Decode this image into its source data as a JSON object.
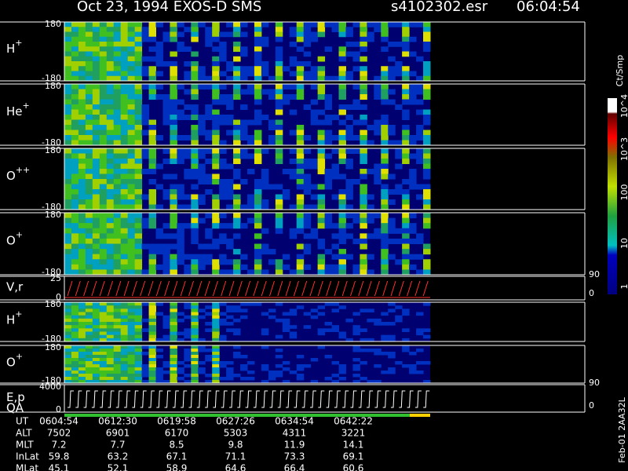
{
  "header": {
    "title": "Oct 23, 1994   EXOS-D SMS",
    "file": "s4102302.esr",
    "time": "06:04:54"
  },
  "panels": [
    {
      "label": "H",
      "sup": "+",
      "top": "180",
      "bottom": "-180"
    },
    {
      "label": "He",
      "sup": "+",
      "top": "180",
      "bottom": "-180"
    },
    {
      "label": "O",
      "sup": "++",
      "top": "180",
      "bottom": "-180"
    },
    {
      "label": "O",
      "sup": "+",
      "top": "180",
      "bottom": "-180"
    },
    {
      "label": "V,r",
      "top": "25",
      "bottom": "0",
      "right_top": "90",
      "right_bottom": "0"
    },
    {
      "label": "H",
      "sup": "+",
      "top": "180",
      "bottom": "-180"
    },
    {
      "label": "O",
      "sup": "+",
      "top": "180",
      "bottom": "-180"
    },
    {
      "label": "E,p",
      "label2": "QA",
      "top": "4000",
      "bottom": "0",
      "right_top": "90",
      "right_bottom": "0"
    }
  ],
  "colorbar": {
    "title": "Ct/Smp",
    "ticks": [
      "1",
      "10",
      "100",
      "10^3",
      "10^4"
    ]
  },
  "table": {
    "rows": [
      [
        "UT",
        "0604:54",
        "0612:30",
        "0619:58",
        "0627:26",
        "0634:54",
        "0642:22"
      ],
      [
        "ALT",
        "7502",
        "6901",
        "6170",
        "5303",
        "4311",
        "3221"
      ],
      [
        "MLT",
        "7.2",
        "7.7",
        "8.5",
        "9.8",
        "11.9",
        "14.1"
      ],
      [
        "InLat",
        "59.8",
        "63.2",
        "67.1",
        "71.1",
        "73.3",
        "69.1"
      ],
      [
        "MLat",
        "45.1",
        "52.1",
        "58.9",
        "64.6",
        "66.4",
        "60.6"
      ]
    ]
  },
  "footer": "Feb-01 2AA32L"
}
